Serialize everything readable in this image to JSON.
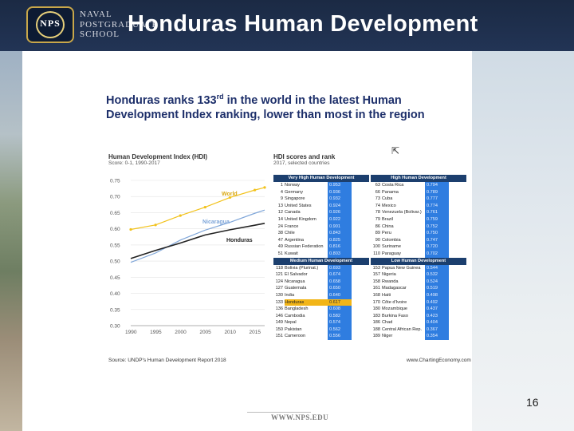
{
  "header": {
    "logo_mark": "NPS",
    "school_lines": [
      "NAVAL",
      "POSTGRADUATE",
      "SCHOOL"
    ],
    "title": "Honduras Human Development"
  },
  "colors": {
    "header_bg": "#1b2a44",
    "headline": "#1d2f6a",
    "honduras_line": "#222222",
    "world_line": "#f2c21b",
    "nicaragua_line": "#7fa6d9",
    "table_head": "#1c3f6e",
    "table_value": "#2f7de0",
    "highlight": "#f2b517"
  },
  "headline": {
    "part1": "Honduras ranks 133",
    "sup": "rd",
    "part2": " in the world in the latest Human Development Index ranking, lower than most in the region"
  },
  "chart": {
    "title": "Human Development Index (HDI)",
    "subtitle": "Score: 0-1, 1990-2017",
    "label_world": "World",
    "label_nicaragua": "Nicaragua",
    "label_honduras": "Honduras"
  },
  "chart_data": {
    "type": "line",
    "title": "Human Development Index (HDI)",
    "subtitle": "Score: 0-1, 1990-2017",
    "xlabel": "",
    "ylabel": "",
    "x": [
      1990,
      1995,
      2000,
      2005,
      2010,
      2015,
      2017
    ],
    "ylim": [
      0.3,
      0.75
    ],
    "yticks": [
      "0.75",
      "0.70",
      "0.65",
      "0.60",
      "0.55",
      "0.50",
      "0.45",
      "0.40",
      "0.35",
      "0.30"
    ],
    "xticks": [
      "1990",
      "1995",
      "2000",
      "2005",
      "2010",
      "2015"
    ],
    "series": [
      {
        "name": "World",
        "values": [
          0.598,
          0.612,
          0.641,
          0.667,
          0.697,
          0.72,
          0.728
        ]
      },
      {
        "name": "Nicaragua",
        "values": [
          0.496,
          0.525,
          0.565,
          0.596,
          0.62,
          0.648,
          0.658
        ]
      },
      {
        "name": "Honduras",
        "values": [
          0.508,
          0.533,
          0.556,
          0.581,
          0.597,
          0.611,
          0.617
        ]
      }
    ]
  },
  "table": {
    "title": "HDI scores and rank",
    "subtitle": "2017, selected countries",
    "very_high_label": "Very High Human Development",
    "high_label": "High Human Development",
    "medium_label": "Medium Human Development",
    "low_label": "Low Human Development",
    "very_high": [
      {
        "rank": "1",
        "country": "Norway",
        "value": "0.953"
      },
      {
        "rank": "4",
        "country": "Germany",
        "value": "0.936"
      },
      {
        "rank": "9",
        "country": "Singapore",
        "value": "0.932"
      },
      {
        "rank": "13",
        "country": "United States",
        "value": "0.924"
      },
      {
        "rank": "12",
        "country": "Canada",
        "value": "0.926"
      },
      {
        "rank": "14",
        "country": "United Kingdom",
        "value": "0.922"
      },
      {
        "rank": "24",
        "country": "France",
        "value": "0.901"
      },
      {
        "rank": "38",
        "country": "Chile",
        "value": "0.843"
      },
      {
        "rank": "47",
        "country": "Argentina",
        "value": "0.825"
      },
      {
        "rank": "49",
        "country": "Russian Federation",
        "value": "0.816"
      },
      {
        "rank": "51",
        "country": "Kuwait",
        "value": "0.803"
      }
    ],
    "high": [
      {
        "rank": "63",
        "country": "Costa Rica",
        "value": "0.794"
      },
      {
        "rank": "66",
        "country": "Panama",
        "value": "0.789"
      },
      {
        "rank": "73",
        "country": "Cuba",
        "value": "0.777"
      },
      {
        "rank": "74",
        "country": "Mexico",
        "value": "0.774"
      },
      {
        "rank": "78",
        "country": "Venezuela (Bolivar.)",
        "value": "0.761"
      },
      {
        "rank": "79",
        "country": "Brazil",
        "value": "0.759"
      },
      {
        "rank": "86",
        "country": "China",
        "value": "0.752"
      },
      {
        "rank": "89",
        "country": "Peru",
        "value": "0.750"
      },
      {
        "rank": "90",
        "country": "Colombia",
        "value": "0.747"
      },
      {
        "rank": "100",
        "country": "Suriname",
        "value": "0.720"
      },
      {
        "rank": "110",
        "country": "Paraguay",
        "value": "0.702"
      }
    ],
    "medium": [
      {
        "rank": "118",
        "country": "Bolivia (Plurinat.)",
        "value": "0.693"
      },
      {
        "rank": "121",
        "country": "El Salvador",
        "value": "0.674"
      },
      {
        "rank": "124",
        "country": "Nicaragua",
        "value": "0.658"
      },
      {
        "rank": "127",
        "country": "Guatemala",
        "value": "0.650"
      },
      {
        "rank": "130",
        "country": "India",
        "value": "0.640"
      },
      {
        "rank": "133",
        "country": "Honduras",
        "value": "0.617"
      },
      {
        "rank": "136",
        "country": "Bangladesh",
        "value": "0.608"
      },
      {
        "rank": "146",
        "country": "Cambodia",
        "value": "0.582"
      },
      {
        "rank": "149",
        "country": "Nepal",
        "value": "0.574"
      },
      {
        "rank": "150",
        "country": "Pakistan",
        "value": "0.562"
      },
      {
        "rank": "151",
        "country": "Cameroon",
        "value": "0.556"
      }
    ],
    "low": [
      {
        "rank": "153",
        "country": "Papua New Guinea",
        "value": "0.544"
      },
      {
        "rank": "157",
        "country": "Nigeria",
        "value": "0.532"
      },
      {
        "rank": "158",
        "country": "Rwanda",
        "value": "0.524"
      },
      {
        "rank": "161",
        "country": "Madagascar",
        "value": "0.519"
      },
      {
        "rank": "168",
        "country": "Haiti",
        "value": "0.498"
      },
      {
        "rank": "170",
        "country": "Côte d'Ivoire",
        "value": "0.492"
      },
      {
        "rank": "180",
        "country": "Mozambique",
        "value": "0.437"
      },
      {
        "rank": "183",
        "country": "Burkina Faso",
        "value": "0.423"
      },
      {
        "rank": "186",
        "country": "Chad",
        "value": "0.404"
      },
      {
        "rank": "188",
        "country": "Central African Rep.",
        "value": "0.367"
      },
      {
        "rank": "189",
        "country": "Niger",
        "value": "0.354"
      }
    ]
  },
  "source": {
    "left": "Source: UNDP's Human Development Report 2018",
    "right": "www.ChartingEconomy.com"
  },
  "page_number": "16",
  "footer_url": "WWW.NPS.EDU"
}
